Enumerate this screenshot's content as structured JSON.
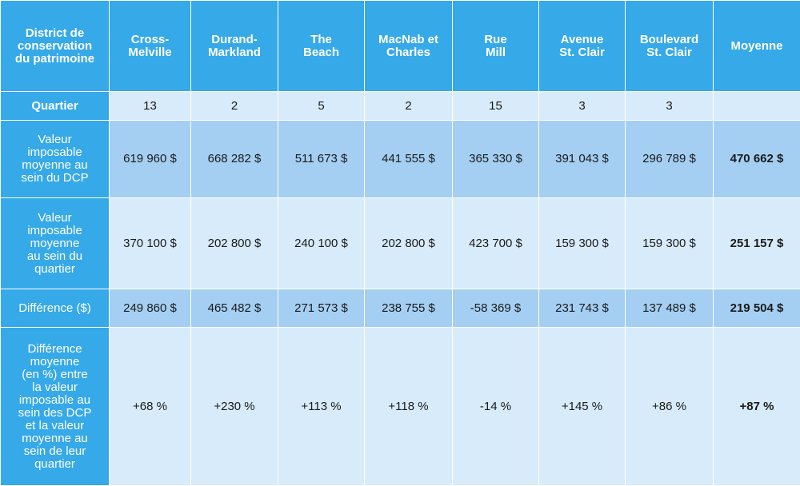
{
  "header": {
    "corner": [
      "District de",
      "conservation",
      "du patrimoine"
    ],
    "columns": [
      [
        "Cross-",
        "Melville"
      ],
      [
        "Durand-",
        "Markland"
      ],
      [
        "The",
        "Beach"
      ],
      [
        "MacNab et",
        "Charles"
      ],
      [
        "Rue",
        "Mill"
      ],
      [
        "Avenue",
        "St. Clair"
      ],
      [
        "Boulevard",
        "St. Clair"
      ],
      [
        "Moyenne"
      ]
    ]
  },
  "rows": [
    {
      "label": [
        "Quartier"
      ],
      "values": [
        "13",
        "2",
        "5",
        "2",
        "15",
        "3",
        "3",
        ""
      ]
    },
    {
      "label": [
        "Valeur",
        "imposable",
        "moyenne au",
        "sein du DCP"
      ],
      "values": [
        "619 960 $",
        "668 282 $",
        "511 673 $",
        "441 555 $",
        "365 330 $",
        "391 043 $",
        "296 789 $",
        "470 662 $"
      ]
    },
    {
      "label": [
        "Valeur",
        "imposable",
        "moyenne",
        "au sein du",
        "quartier"
      ],
      "values": [
        "370 100 $",
        "202 800 $",
        "240 100 $",
        "202 800 $",
        "423 700 $",
        "159 300 $",
        "159 300 $",
        "251 157 $"
      ]
    },
    {
      "label": [
        "Différence ($)"
      ],
      "values": [
        "249 860 $",
        "465 482 $",
        "271 573 $",
        "238 755 $",
        "-58 369 $",
        "231 743 $",
        "137 489 $",
        "219 504 $"
      ]
    },
    {
      "label": [
        "Différence",
        "moyenne",
        "(en %) entre",
        "la valeur",
        "imposable au",
        "sein des DCP",
        "et la valeur",
        "moyenne au",
        "sein de leur",
        "quartier"
      ],
      "values": [
        "+68 %",
        "+230 %",
        "+113 %",
        "+118 %",
        "-14 %",
        "+145 %",
        "+86 %",
        "+87 %"
      ]
    }
  ]
}
